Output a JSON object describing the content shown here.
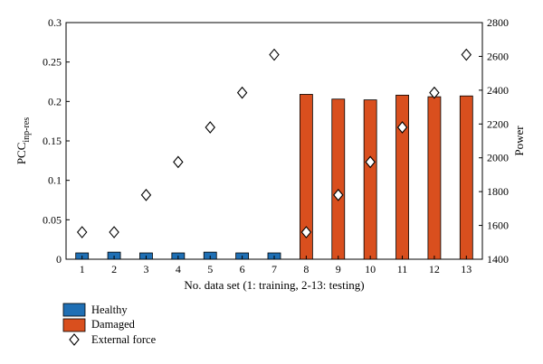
{
  "chart_data": {
    "type": "bar",
    "categories": [
      "1",
      "2",
      "3",
      "4",
      "5",
      "6",
      "7",
      "8",
      "9",
      "10",
      "11",
      "12",
      "13"
    ],
    "series": [
      {
        "name": "Healthy",
        "axis": "left",
        "type": "bar",
        "values": [
          0.008,
          0.009,
          0.008,
          0.008,
          0.009,
          0.008,
          0.008,
          null,
          null,
          null,
          null,
          null,
          null
        ]
      },
      {
        "name": "Damaged",
        "axis": "left",
        "type": "bar",
        "values": [
          null,
          null,
          null,
          null,
          null,
          null,
          null,
          0.209,
          0.203,
          0.202,
          0.208,
          0.206,
          0.207
        ]
      },
      {
        "name": "External force",
        "axis": "right",
        "type": "scatter",
        "values": [
          1560,
          1560,
          1780,
          1975,
          2180,
          2385,
          2610,
          1560,
          1780,
          1975,
          2180,
          2385,
          2610
        ]
      }
    ],
    "xlabel": "No. data set (1: training, 2-13: testing)",
    "ylabel": {
      "main": "PCC",
      "subscript": "inp-res"
    },
    "y2label": "Power",
    "ylim": [
      0,
      0.3
    ],
    "y2lim": [
      1400,
      2800
    ],
    "yticks": [
      "0",
      "0.05",
      "0.1",
      "0.15",
      "0.2",
      "0.25",
      "0.3"
    ],
    "y2ticks": [
      "1400",
      "1600",
      "1800",
      "2000",
      "2200",
      "2400",
      "2600",
      "2800"
    ],
    "grid": false,
    "legend_position": "below",
    "colors": {
      "Healthy": "#1f6fb4",
      "Damaged": "#d94f1e"
    }
  }
}
